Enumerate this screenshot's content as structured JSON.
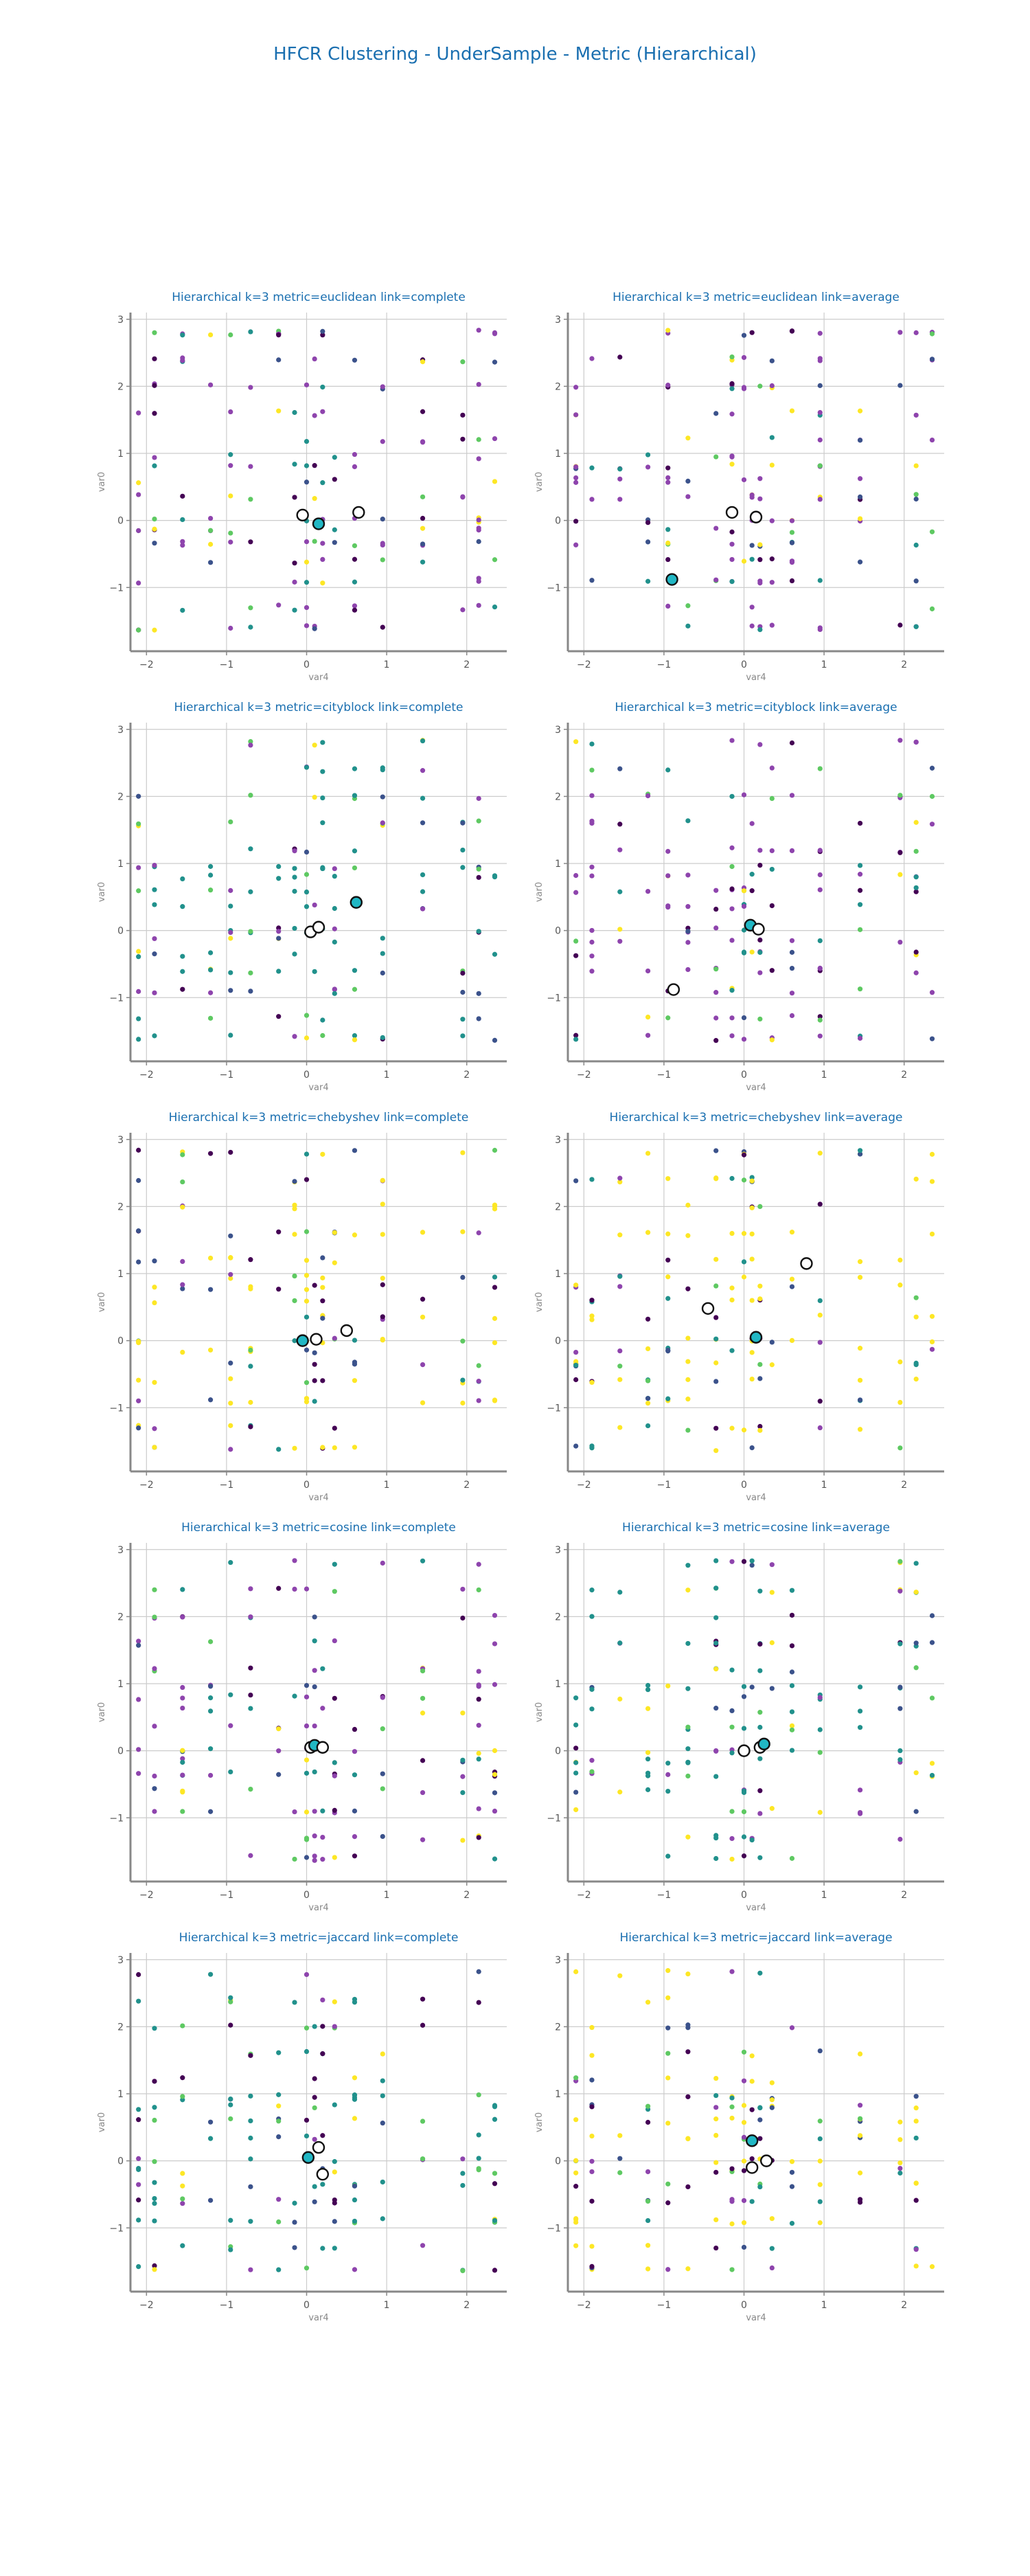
{
  "figure_title": "HFCR Clustering - UnderSample - Metric (Hierarchical)",
  "palette": {
    "cluster_colors": [
      "#440154",
      "#3b528b",
      "#21918c",
      "#5ec962",
      "#fde725",
      "#8e44ad"
    ],
    "centroid_fill": "#ffffff",
    "highlight_centroid_fill": "#21b7c4",
    "axis_color": "#888888",
    "grid_color": "#cccccc",
    "title_color": "#1a6fb0"
  },
  "axis": {
    "xlabel": "var4",
    "ylabel": "var0",
    "xlim": [
      -2.2,
      2.5
    ],
    "ylim": [
      -1.95,
      3.1
    ],
    "xticks": [
      -2,
      -1,
      0,
      1,
      2
    ],
    "yticks": [
      -1,
      0,
      1,
      2,
      3
    ],
    "grid": true
  },
  "chart_data": [
    {
      "type": "scatter",
      "title": "Hierarchical k=3 metric=euclidean link=complete",
      "dominant": "#8e44ad",
      "centroids": [
        [
          -0.05,
          0.08
        ],
        [
          0.15,
          -0.05
        ],
        [
          0.65,
          0.12
        ]
      ],
      "highlight": 1
    },
    {
      "type": "scatter",
      "title": "Hierarchical k=3 metric=euclidean link=average",
      "dominant": "#8e44ad",
      "centroids": [
        [
          -0.9,
          -0.88
        ],
        [
          -0.15,
          0.12
        ],
        [
          0.15,
          0.05
        ]
      ],
      "highlight": 0
    },
    {
      "type": "scatter",
      "title": "Hierarchical k=3 metric=cityblock link=complete",
      "dominant": "#21918c",
      "centroids": [
        [
          0.05,
          -0.02
        ],
        [
          0.15,
          0.05
        ],
        [
          0.62,
          0.42
        ]
      ],
      "highlight": 2
    },
    {
      "type": "scatter",
      "title": "Hierarchical k=3 metric=cityblock link=average",
      "dominant": "#8e44ad",
      "centroids": [
        [
          -0.88,
          -0.88
        ],
        [
          0.08,
          0.08
        ],
        [
          0.18,
          0.02
        ]
      ],
      "highlight": 1
    },
    {
      "type": "scatter",
      "title": "Hierarchical k=3 metric=chebyshev link=complete",
      "dominant": "#fde725",
      "centroids": [
        [
          -0.05,
          0.0
        ],
        [
          0.12,
          0.02
        ],
        [
          0.5,
          0.15
        ]
      ],
      "highlight": 0
    },
    {
      "type": "scatter",
      "title": "Hierarchical k=3 metric=chebyshev link=average",
      "dominant": "#fde725",
      "centroids": [
        [
          -0.45,
          0.48
        ],
        [
          0.15,
          0.05
        ],
        [
          0.78,
          1.15
        ]
      ],
      "highlight": 1
    },
    {
      "type": "scatter",
      "title": "Hierarchical k=3 metric=cosine link=complete",
      "dominant": "#8e44ad",
      "centroids": [
        [
          0.05,
          0.05
        ],
        [
          0.1,
          0.08
        ],
        [
          0.2,
          0.05
        ]
      ],
      "highlight": 1
    },
    {
      "type": "scatter",
      "title": "Hierarchical k=3 metric=cosine link=average",
      "dominant": "#21918c",
      "centroids": [
        [
          0.0,
          0.0
        ],
        [
          0.2,
          0.05
        ],
        [
          0.25,
          0.1
        ]
      ],
      "highlight": 2
    },
    {
      "type": "scatter",
      "title": "Hierarchical k=3 metric=jaccard link=complete",
      "dominant": "#21918c",
      "centroids": [
        [
          0.02,
          0.05
        ],
        [
          0.15,
          0.2
        ],
        [
          0.2,
          -0.2
        ]
      ],
      "highlight": 0
    },
    {
      "type": "scatter",
      "title": "Hierarchical k=3 metric=jaccard link=average",
      "dominant": "#fde725",
      "centroids": [
        [
          0.1,
          0.3
        ],
        [
          0.1,
          -0.1
        ],
        [
          0.28,
          0.0
        ]
      ],
      "highlight": 0
    }
  ]
}
